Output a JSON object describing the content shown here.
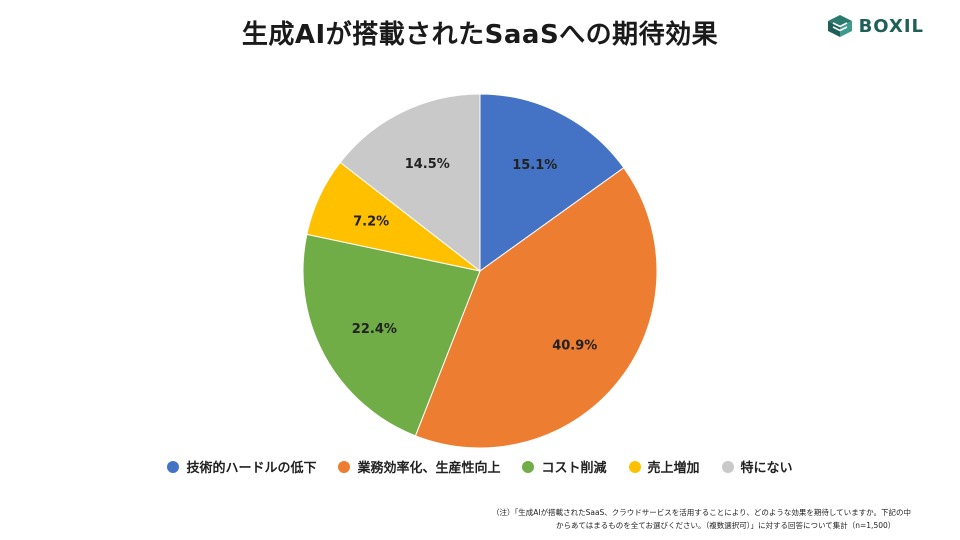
{
  "title": "生成AIが搭載されたSaaSへの期待効果",
  "logo": {
    "text": "BOXIL",
    "icon": "boxil-cube-icon",
    "color": "#1f5f57"
  },
  "chart_data": {
    "type": "pie",
    "title": "生成AIが搭載されたSaaSへの期待効果",
    "start_angle_deg": 0,
    "direction": "clockwise",
    "slices": [
      {
        "label": "技術的ハードルの低下",
        "value": 15.1,
        "display": "15.1%",
        "color": "#4472C4"
      },
      {
        "label": "業務効率化、生産性向上",
        "value": 40.9,
        "display": "40.9%",
        "color": "#ED7D31"
      },
      {
        "label": "コスト削減",
        "value": 22.4,
        "display": "22.4%",
        "color": "#70AD47"
      },
      {
        "label": "売上増加",
        "value": 7.2,
        "display": "7.2%",
        "color": "#FFC000"
      },
      {
        "label": "特にない",
        "value": 14.5,
        "display": "14.5%",
        "color": "#C9C9C9"
      }
    ],
    "legend_position": "bottom"
  },
  "note": {
    "line1": "（注）「生成AIが搭載されたSaaS、クラウドサービスを活用することにより、どのような効果を期待していますか。下記の中",
    "line2": "からあてはまるものを全てお選びください。（複数選択可）」に対する回答について集計（n=1,500）"
  }
}
